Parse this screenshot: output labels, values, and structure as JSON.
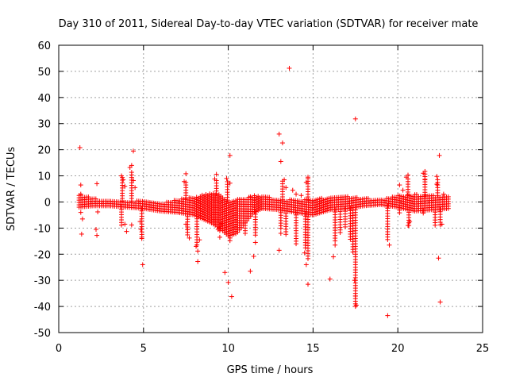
{
  "chart_data": {
    "type": "scatter",
    "title": "Day 310 of 2011, Sidereal Day-to-day VTEC variation (SDTVAR) for receiver mate",
    "xlabel": "GPS time / hours",
    "ylabel": "SDTVAR / TECUs",
    "xlim": [
      0,
      25
    ],
    "ylim": [
      -50,
      60
    ],
    "xticks": [
      "0",
      "5",
      "10",
      "15",
      "20",
      "25"
    ],
    "yticks": [
      "-50",
      "-40",
      "-30",
      "-20",
      "-10",
      "0",
      "10",
      "20",
      "30",
      "40",
      "50",
      "60"
    ],
    "grid": true,
    "marker": "plus",
    "color": "#ff0000",
    "series": [
      {
        "name": "SDTVAR",
        "points": [
          [
            1.25,
            20.8
          ],
          [
            1.3,
            6.5
          ],
          [
            1.3,
            3.0
          ],
          [
            1.3,
            -4.0
          ],
          [
            1.35,
            -12.3
          ],
          [
            1.4,
            -6.5
          ],
          [
            2.2,
            -10.5
          ],
          [
            2.25,
            -12.8
          ],
          [
            2.25,
            7.0
          ],
          [
            2.3,
            -3.8
          ],
          [
            3.7,
            10.0
          ],
          [
            3.8,
            8.5
          ],
          [
            3.9,
            6.0
          ],
          [
            3.9,
            -8.5
          ],
          [
            4.0,
            -11.3
          ],
          [
            4.2,
            13.2
          ],
          [
            4.3,
            14.0
          ],
          [
            4.3,
            -8.8
          ],
          [
            4.4,
            19.5
          ],
          [
            4.4,
            8.2
          ],
          [
            4.5,
            5.5
          ],
          [
            4.8,
            -7.5
          ],
          [
            4.85,
            -10.5
          ],
          [
            4.9,
            -14.0
          ],
          [
            4.95,
            -24.0
          ],
          [
            7.4,
            7.8
          ],
          [
            7.5,
            10.8
          ],
          [
            7.5,
            -8.5
          ],
          [
            7.6,
            -10.5
          ],
          [
            7.7,
            -13.8
          ],
          [
            8.1,
            -17.0
          ],
          [
            8.2,
            -18.8
          ],
          [
            8.2,
            -22.8
          ],
          [
            8.3,
            -14.5
          ],
          [
            9.2,
            8.8
          ],
          [
            9.3,
            10.6
          ],
          [
            9.4,
            -10.5
          ],
          [
            9.5,
            -13.5
          ],
          [
            9.6,
            -8.2
          ],
          [
            9.8,
            -27.0
          ],
          [
            10.0,
            -30.8
          ],
          [
            10.2,
            -36.2
          ],
          [
            10.1,
            17.8
          ],
          [
            9.9,
            9.0
          ],
          [
            10.1,
            7.2
          ],
          [
            11.3,
            2.0
          ],
          [
            11.3,
            -26.5
          ],
          [
            11.5,
            -20.8
          ],
          [
            11.6,
            -15.5
          ],
          [
            13.0,
            26.0
          ],
          [
            13.1,
            15.5
          ],
          [
            13.2,
            22.6
          ],
          [
            13.0,
            -18.5
          ],
          [
            13.1,
            -12.0
          ],
          [
            13.3,
            8.5
          ],
          [
            13.4,
            5.5
          ],
          [
            13.6,
            51.2
          ],
          [
            13.8,
            4.5
          ],
          [
            14.0,
            3.0
          ],
          [
            14.3,
            2.5
          ],
          [
            14.5,
            -19.5
          ],
          [
            14.6,
            -24.0
          ],
          [
            14.7,
            -31.5
          ],
          [
            14.7,
            9.5
          ],
          [
            14.6,
            7.5
          ],
          [
            16.0,
            -29.5
          ],
          [
            16.2,
            -21.0
          ],
          [
            16.3,
            -16.5
          ],
          [
            17.5,
            31.8
          ],
          [
            17.55,
            -39.5
          ],
          [
            17.5,
            -36.0
          ],
          [
            17.45,
            -30.0
          ],
          [
            19.4,
            -43.5
          ],
          [
            19.5,
            -16.5
          ],
          [
            20.1,
            6.5
          ],
          [
            20.3,
            4.5
          ],
          [
            20.5,
            9.5
          ],
          [
            20.6,
            10.3
          ],
          [
            20.6,
            -9.0
          ],
          [
            20.7,
            -7.5
          ],
          [
            21.5,
            11.0
          ],
          [
            21.6,
            11.7
          ],
          [
            21.6,
            8.5
          ],
          [
            22.3,
            9.8
          ],
          [
            22.3,
            6.8
          ],
          [
            22.4,
            -21.5
          ],
          [
            22.45,
            17.8
          ],
          [
            22.5,
            -38.3
          ],
          [
            22.6,
            -8.5
          ],
          [
            22.7,
            3.0
          ]
        ],
        "band": {
          "x": [
            1.2,
            2.0,
            3.0,
            4.0,
            5.0,
            6.0,
            7.0,
            8.0,
            9.0,
            9.5,
            10.0,
            10.5,
            11.0,
            11.5,
            12.0,
            13.0,
            14.0,
            15.0,
            16.0,
            17.0,
            18.0,
            19.0,
            20.0,
            21.0,
            22.0,
            23.0
          ],
          "hi": [
            3.0,
            1.5,
            0.5,
            0.3,
            0.5,
            -0.5,
            1.0,
            2.0,
            3.5,
            3.0,
            0.5,
            1.5,
            1.5,
            2.5,
            2.5,
            1.0,
            0.8,
            1.0,
            2.0,
            2.2,
            1.5,
            0.8,
            2.5,
            3.0,
            2.5,
            2.5
          ],
          "lo": [
            -2.0,
            -1.5,
            -1.5,
            -2.0,
            -2.5,
            -3.5,
            -4.0,
            -5.0,
            -8.0,
            -10.0,
            -13.0,
            -12.0,
            -8.0,
            -4.0,
            -2.5,
            -3.0,
            -4.0,
            -5.0,
            -3.0,
            -2.5,
            -1.5,
            -1.0,
            -2.0,
            -3.5,
            -3.0,
            -2.5
          ]
        },
        "dips": [
          {
            "x": 3.7,
            "to": -9.0
          },
          {
            "x": 4.9,
            "to": -14.0
          },
          {
            "x": 7.6,
            "to": -13.0
          },
          {
            "x": 8.15,
            "to": -17.0
          },
          {
            "x": 9.5,
            "to": -11.5
          },
          {
            "x": 10.1,
            "to": -15.5
          },
          {
            "x": 11.0,
            "to": -12.5
          },
          {
            "x": 11.6,
            "to": -13.0
          },
          {
            "x": 13.1,
            "to": -11.0
          },
          {
            "x": 13.4,
            "to": -13.0
          },
          {
            "x": 14.0,
            "to": -16.0
          },
          {
            "x": 14.55,
            "to": -18.0
          },
          {
            "x": 14.7,
            "to": -22.0
          },
          {
            "x": 16.3,
            "to": -15.0
          },
          {
            "x": 16.6,
            "to": -12.0
          },
          {
            "x": 16.9,
            "to": -10.0
          },
          {
            "x": 17.2,
            "to": -15.0
          },
          {
            "x": 17.35,
            "to": -20.0
          },
          {
            "x": 17.5,
            "to": -40.0
          },
          {
            "x": 19.4,
            "to": -15.0
          },
          {
            "x": 20.1,
            "to": -5.0
          },
          {
            "x": 20.65,
            "to": -9.0
          },
          {
            "x": 21.5,
            "to": -5.0
          },
          {
            "x": 22.2,
            "to": -9.0
          },
          {
            "x": 22.5,
            "to": -9.0
          }
        ],
        "spikes": [
          {
            "x": 3.75,
            "to": 10.0
          },
          {
            "x": 4.3,
            "to": 12.0
          },
          {
            "x": 7.5,
            "to": 8.0
          },
          {
            "x": 9.3,
            "to": 9.0
          },
          {
            "x": 9.95,
            "to": 8.5
          },
          {
            "x": 13.2,
            "to": 8.0
          },
          {
            "x": 14.7,
            "to": 9.0
          },
          {
            "x": 20.6,
            "to": 9.0
          },
          {
            "x": 21.6,
            "to": 11.0
          },
          {
            "x": 22.35,
            "to": 9.0
          }
        ]
      }
    ]
  }
}
